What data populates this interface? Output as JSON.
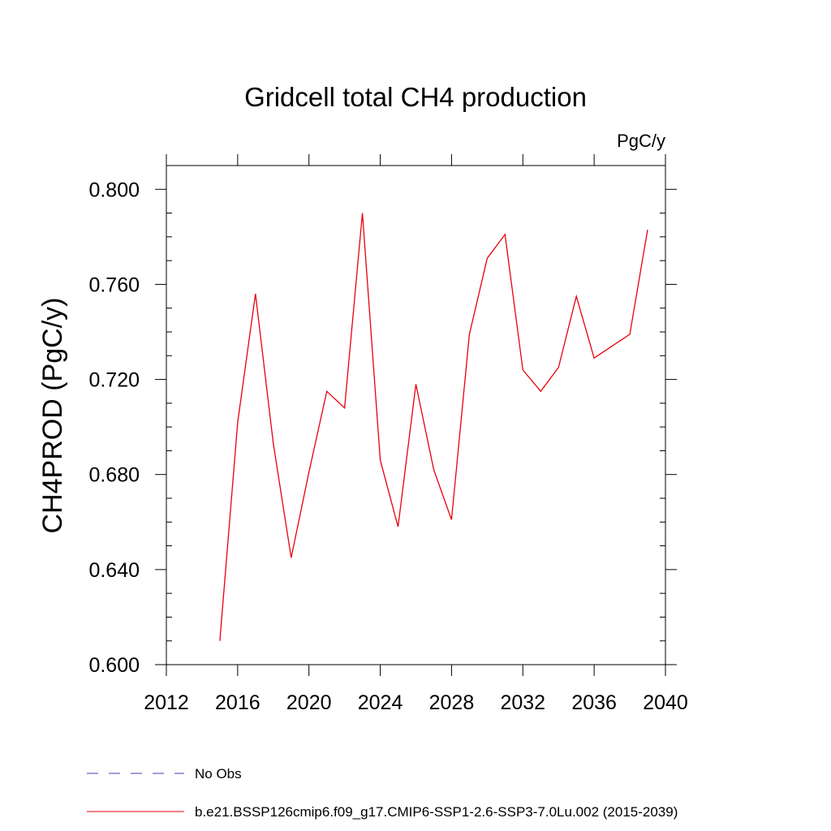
{
  "chart_data": {
    "type": "line",
    "title": "Gridcell total CH4 production",
    "units_label": "PgC/y",
    "xlabel": "",
    "ylabel": "CH4PROD  (PgC/y)",
    "xlim": [
      2012,
      2040
    ],
    "ylim": [
      0.6,
      0.81
    ],
    "x_ticks": [
      2012,
      2016,
      2020,
      2024,
      2028,
      2032,
      2036,
      2040
    ],
    "x_tick_labels": [
      "2012",
      "2016",
      "2020",
      "2024",
      "2028",
      "2032",
      "2036",
      "2040"
    ],
    "y_ticks": [
      0.6,
      0.64,
      0.68,
      0.72,
      0.76,
      0.8
    ],
    "y_tick_labels": [
      "0.600",
      "0.640",
      "0.680",
      "0.720",
      "0.760",
      "0.800"
    ],
    "grid": false,
    "series": [
      {
        "name": "b.e21.BSSP126cmip6.f09_g17.CMIP6-SSP1-2.6-SSP3-7.0Lu.002 (2015-2039)",
        "color": "#e8000b",
        "style": "solid",
        "x": [
          2015,
          2016,
          2017,
          2018,
          2019,
          2020,
          2021,
          2022,
          2023,
          2024,
          2025,
          2026,
          2027,
          2028,
          2029,
          2030,
          2031,
          2032,
          2033,
          2034,
          2035,
          2036,
          2037,
          2038,
          2039
        ],
        "values": [
          0.61,
          0.702,
          0.756,
          0.693,
          0.645,
          0.681,
          0.715,
          0.708,
          0.79,
          0.686,
          0.658,
          0.718,
          0.682,
          0.661,
          0.739,
          0.771,
          0.781,
          0.724,
          0.715,
          0.725,
          0.755,
          0.729,
          0.734,
          0.739,
          0.783
        ]
      }
    ],
    "legend": [
      {
        "label": "No Obs",
        "color": "#4b3fb0",
        "style": "dashed"
      },
      {
        "label": "b.e21.BSSP126cmip6.f09_g17.CMIP6-SSP1-2.6-SSP3-7.0Lu.002 (2015-2039)",
        "color": "#e8000b",
        "style": "solid"
      }
    ],
    "legend_position": "bottom"
  }
}
